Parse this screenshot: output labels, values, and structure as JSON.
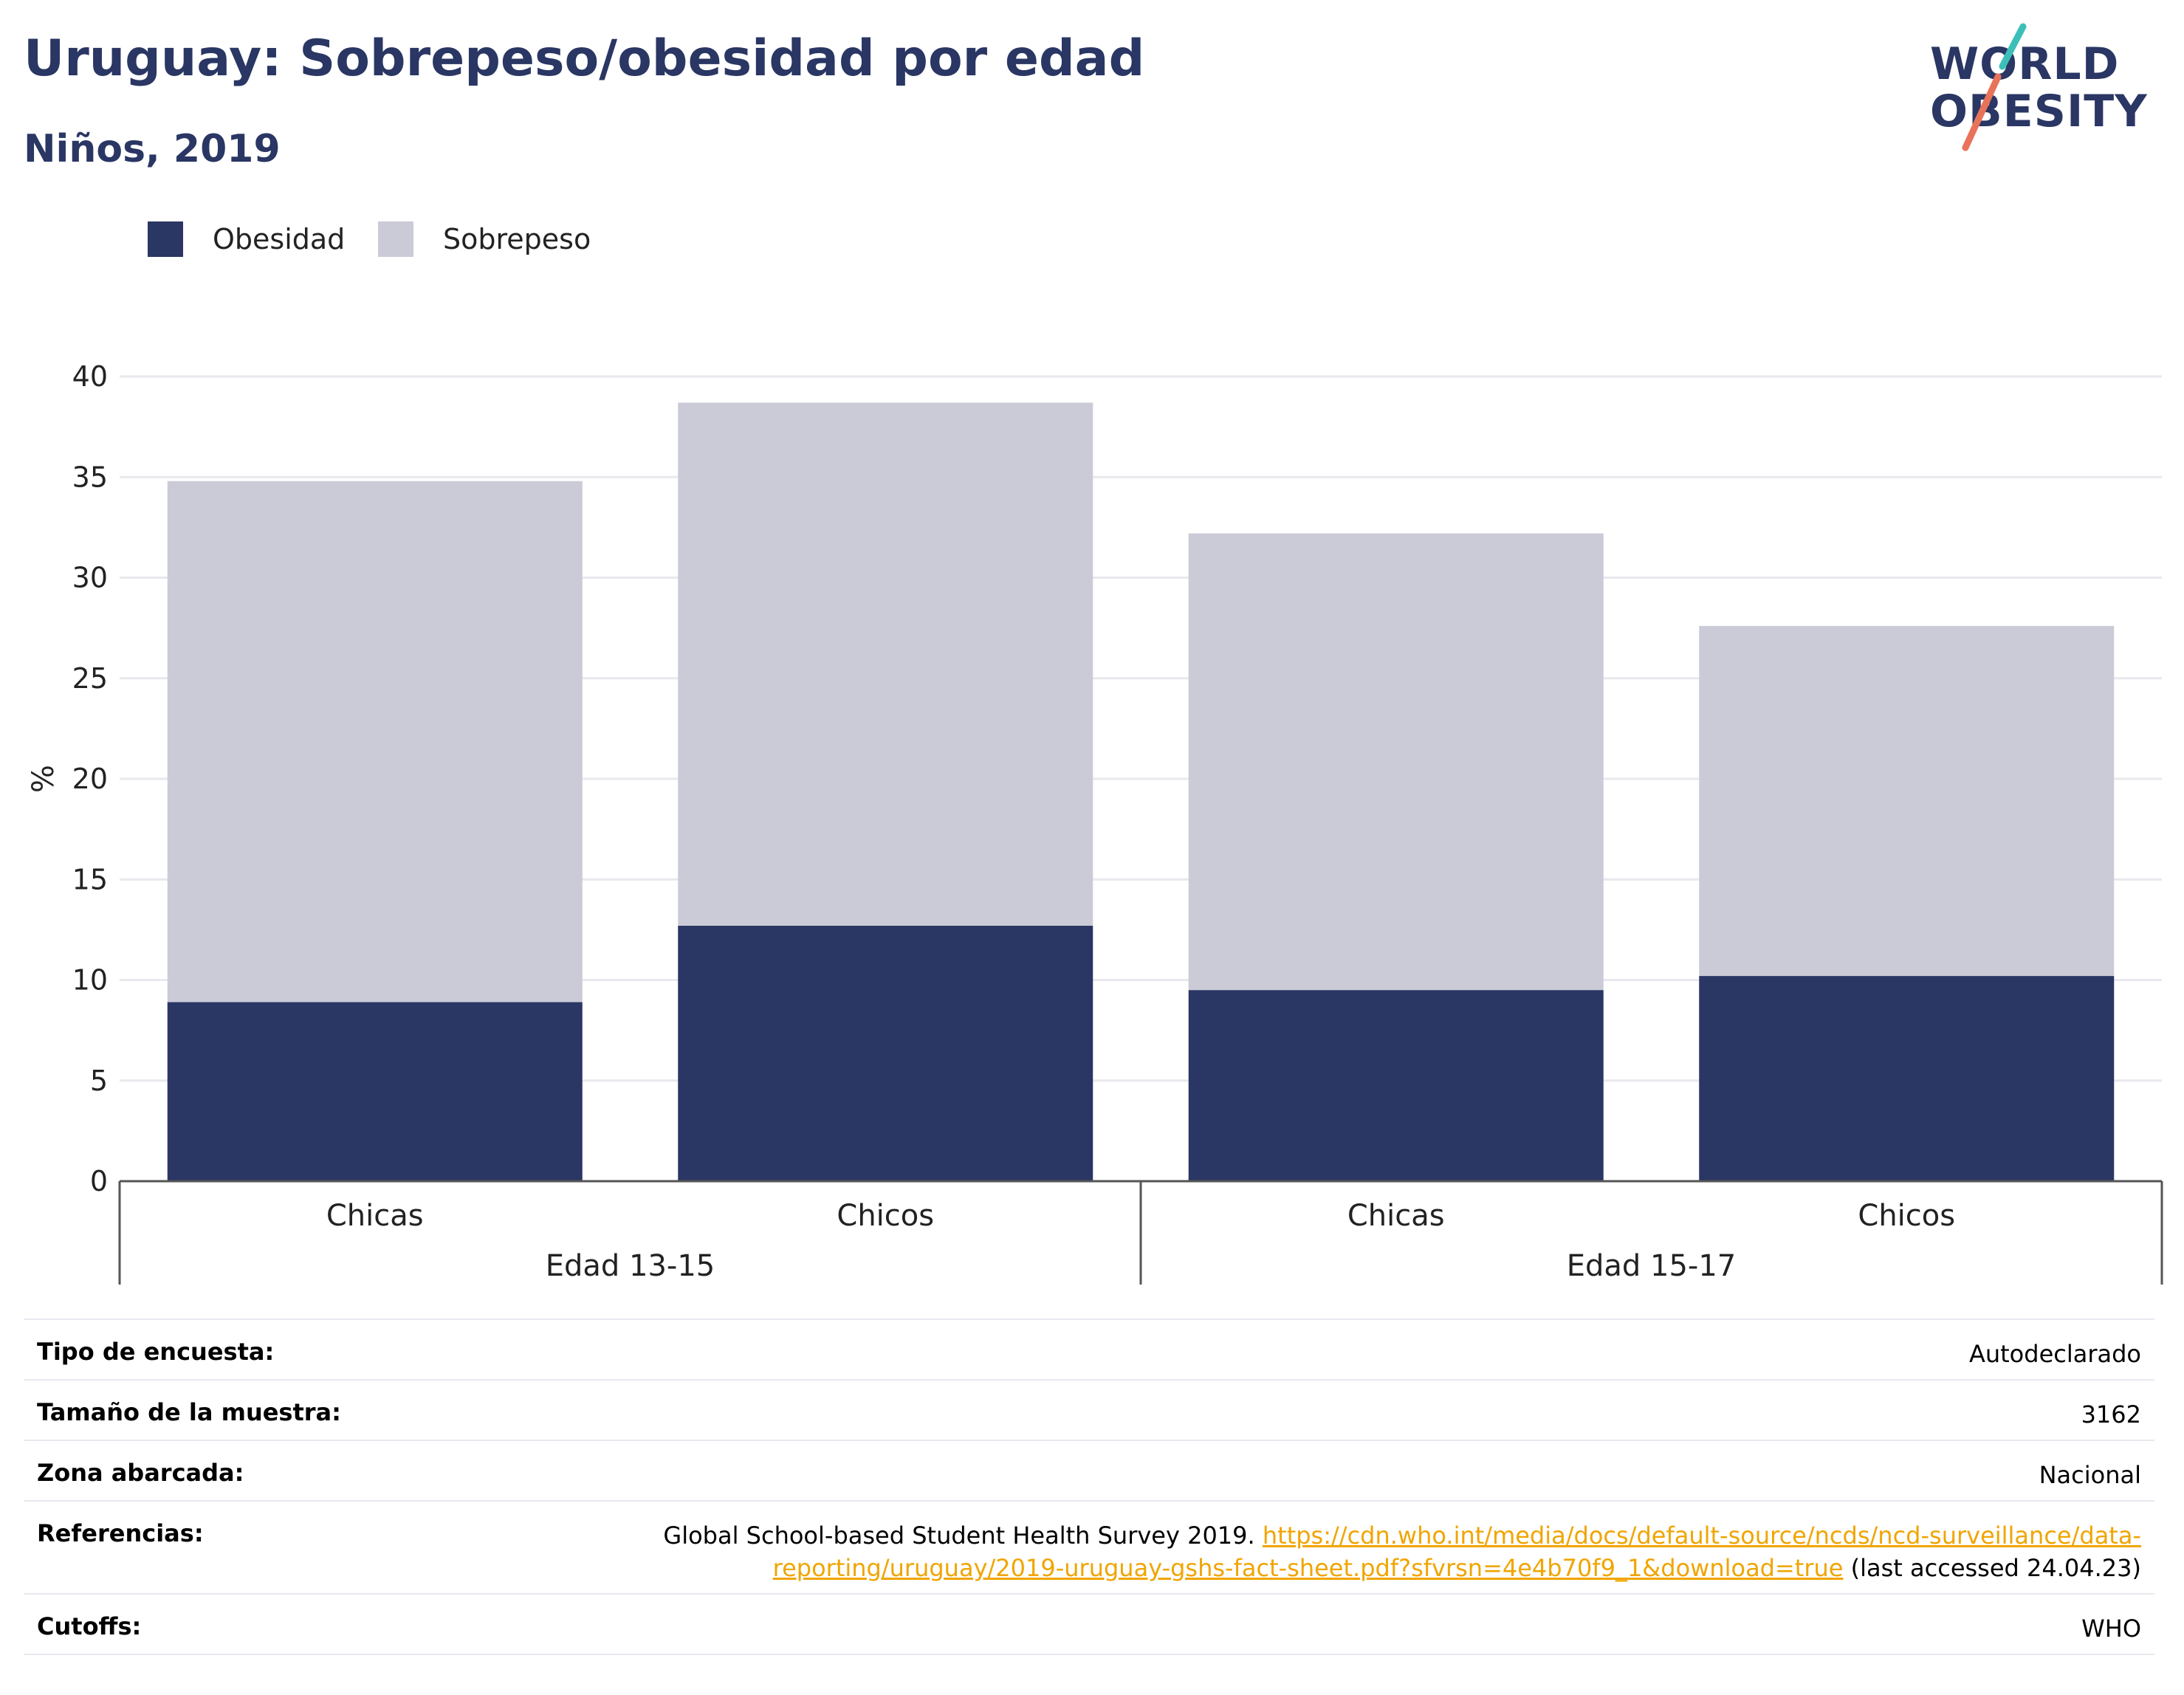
{
  "header": {
    "title": "Uruguay: Sobrepeso/obesidad por edad",
    "subtitle": "Niños, 2019"
  },
  "logo": {
    "line1": "WORLD",
    "line2": "OBESITY",
    "teal": "#3bbfb8",
    "coral": "#e8735a"
  },
  "chart_data": {
    "type": "bar",
    "stacked": true,
    "ylabel": "%",
    "ylim": [
      0,
      40
    ],
    "yticks": [
      0,
      5,
      10,
      15,
      20,
      25,
      30,
      35,
      40
    ],
    "groups": [
      {
        "label": "Edad 13-15",
        "categories": [
          "Chicas",
          "Chicos"
        ]
      },
      {
        "label": "Edad 15-17",
        "categories": [
          "Chicas",
          "Chicos"
        ]
      }
    ],
    "categories": [
      "Chicas",
      "Chicos",
      "Chicas",
      "Chicos"
    ],
    "series": [
      {
        "name": "Obesidad",
        "color": "#2a3663",
        "values": [
          8.9,
          12.7,
          9.5,
          10.2
        ]
      },
      {
        "name": "Sobrepeso",
        "color": "#cacbd6",
        "values": [
          25.9,
          26.0,
          22.7,
          17.4
        ]
      }
    ],
    "totals": [
      34.8,
      38.7,
      32.2,
      27.6
    ],
    "grid": true,
    "legend_position": "top-left"
  },
  "info_table": {
    "rows": [
      {
        "key": "Tipo de encuesta:",
        "value": "Autodeclarado"
      },
      {
        "key": "Tamaño de la muestra:",
        "value": "3162"
      },
      {
        "key": "Zona abarcada:",
        "value": "Nacional"
      },
      {
        "key": "Referencias:",
        "value_prefix": "Global School-based Student Health Survey 2019. ",
        "link_line1": "https://cdn.who.int/media/docs/default-source/ncds/ncd-surveillance/data-",
        "link_line2": "reporting/uruguay/2019-uruguay-gshs-fact-sheet.pdf?sfvrsn=4e4b70f9_1&download=true",
        "value_suffix": " (last accessed 24.04.23)"
      },
      {
        "key": "Cutoffs:",
        "value": "WHO"
      }
    ]
  }
}
